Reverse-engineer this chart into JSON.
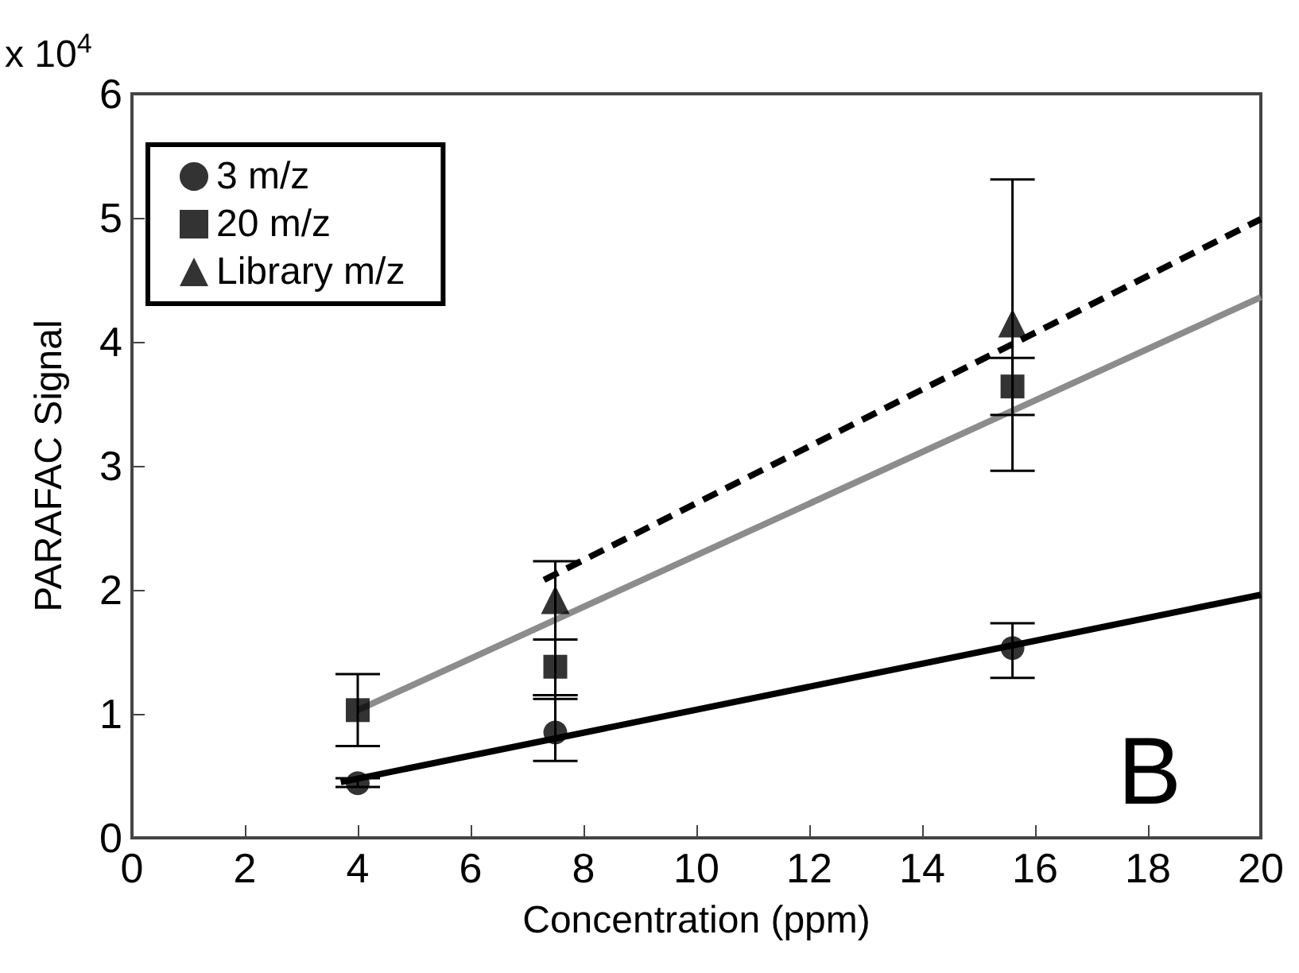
{
  "chart_data": {
    "type": "scatter",
    "xlabel": "Concentration (ppm)",
    "ylabel": "PARAFAC Signal",
    "xlim": [
      0,
      20
    ],
    "xticks": [
      0,
      2,
      4,
      6,
      8,
      10,
      12,
      14,
      16,
      18,
      20
    ],
    "ylim": [
      0,
      6
    ],
    "yticks": [
      0,
      1,
      2,
      3,
      4,
      5,
      6
    ],
    "legend": "top left",
    "annotations": [
      "x 10$^{4}$",
      "B"
    ],
    "series": [
      {
        "name": "3 m/z",
        "marker": "circle",
        "color": "#000000",
        "x": [
          4,
          7.5,
          15.6
        ],
        "values": [
          0.44,
          0.85,
          1.53
        ],
        "errors": [
          [
            0.41,
            0.48
          ],
          [
            0.62,
            1.15
          ],
          [
            1.29,
            1.73
          ]
        ]
      },
      {
        "name": "20 m/z",
        "marker": "square",
        "color": "#000000",
        "x": [
          4,
          7.5,
          15.6
        ],
        "values": [
          1.03,
          1.38,
          3.64
        ],
        "errors": [
          [
            0.74,
            1.32
          ],
          [
            1.15,
            1.6
          ],
          [
            3.41,
            3.87
          ]
        ]
      },
      {
        "name": "Library m/z",
        "marker": "triangle",
        "color": "#000000",
        "x": [
          7.5,
          15.6
        ],
        "values": [
          1.92,
          4.15
        ],
        "errors": [
          [
            1.12,
            2.23
          ],
          [
            2.96,
            5.31
          ]
        ]
      },
      {
        "type": "line",
        "color": "#000000",
        "line_style": "solid",
        "x": [
          3.7,
          20
        ],
        "values": [
          0.45,
          1.96
        ]
      },
      {
        "type": "line",
        "color": "#8c8c8c",
        "line_style": "solid",
        "x": [
          4,
          20
        ],
        "values": [
          1.03,
          4.36
        ]
      },
      {
        "type": "line",
        "color": "#000000",
        "line_style": "dashed",
        "x": [
          7.3,
          20
        ],
        "values": [
          2.08,
          4.99
        ]
      }
    ]
  }
}
